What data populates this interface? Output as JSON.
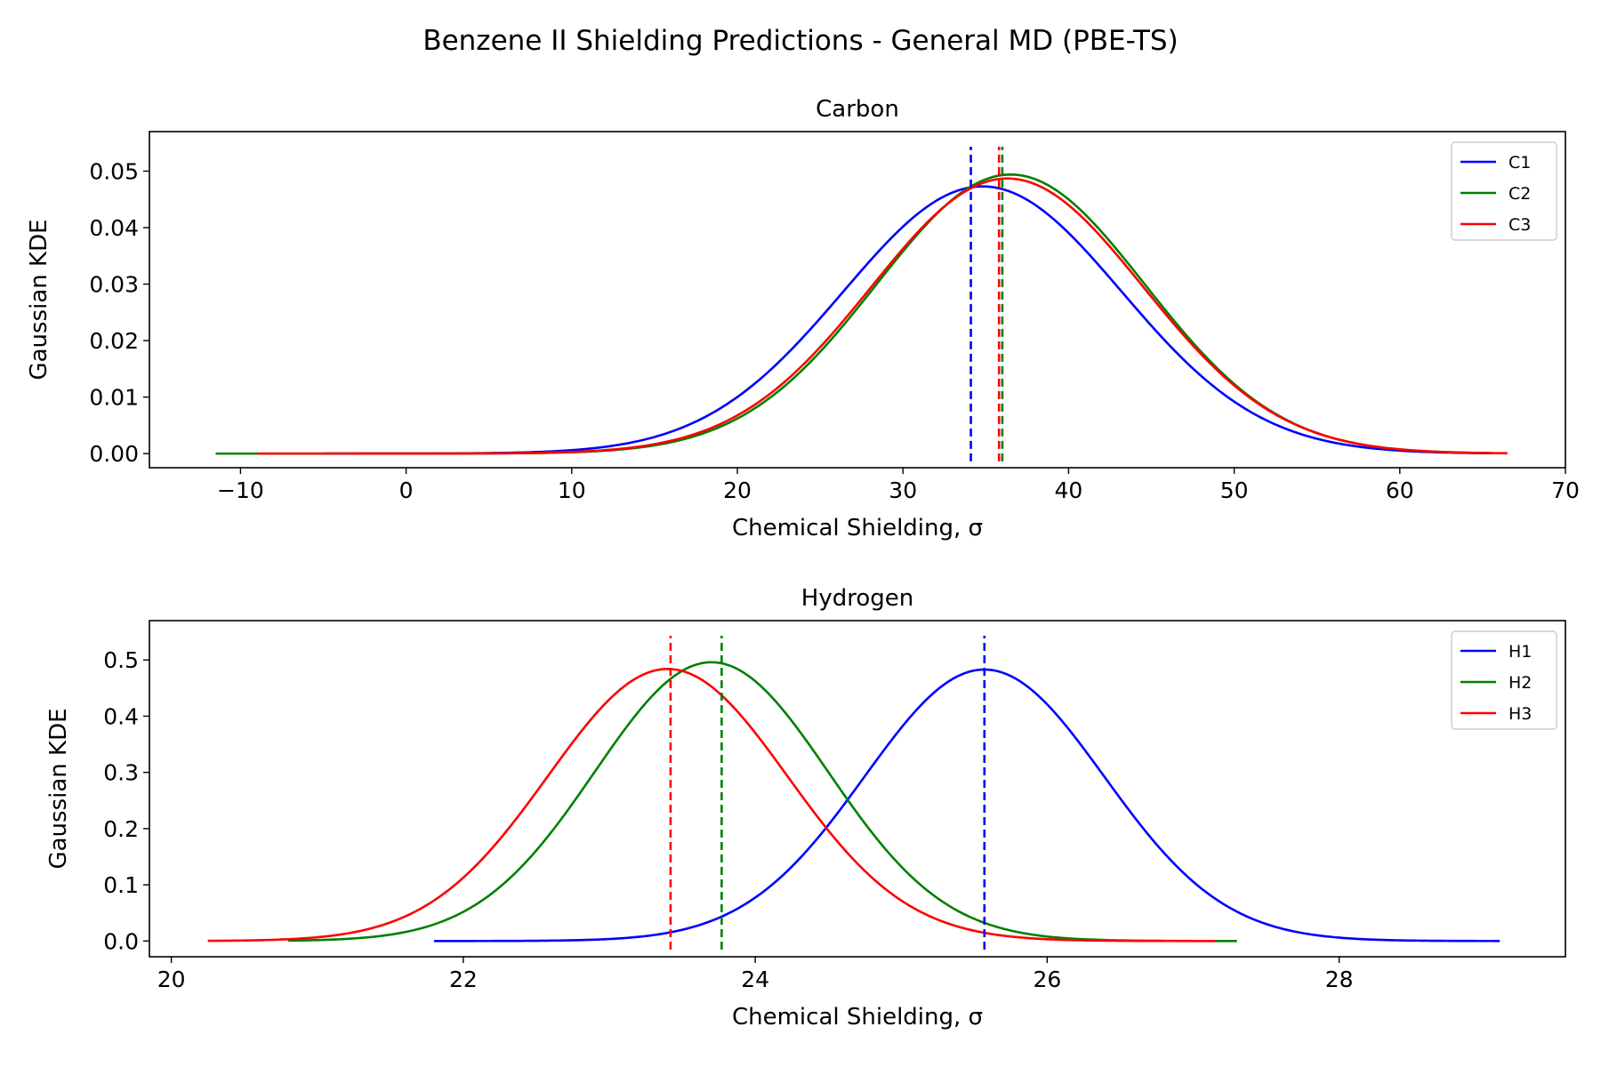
{
  "figure": {
    "suptitle": "Benzene II Shielding Predictions - General MD (PBE-TS)"
  },
  "chart_data": [
    {
      "type": "line",
      "title": "Carbon",
      "xlabel": "Chemical Shielding, σ",
      "ylabel": "Gaussian KDE",
      "xlim": [
        -15.5,
        70
      ],
      "ylim": [
        -0.0025,
        0.057
      ],
      "xticks": [
        -10,
        0,
        10,
        20,
        30,
        40,
        50,
        60,
        70
      ],
      "xtick_labels": [
        "−10",
        "0",
        "10",
        "20",
        "30",
        "40",
        "50",
        "60",
        "70"
      ],
      "yticks": [
        0.0,
        0.01,
        0.02,
        0.03,
        0.04,
        0.05
      ],
      "ytick_labels": [
        "0.00",
        "0.01",
        "0.02",
        "0.03",
        "0.04",
        "0.05"
      ],
      "legend_position": "upper right",
      "grid": false,
      "series": [
        {
          "name": "C1",
          "color": "#0000ff",
          "mean": 34.8,
          "sd": 8.4,
          "peak": 0.0473,
          "x_range": [
            -5,
            65.5
          ],
          "mean_line": 34.1
        },
        {
          "name": "C2",
          "color": "#008000",
          "mean": 36.5,
          "sd": 8.1,
          "peak": 0.0494,
          "x_range": [
            -11.5,
            65.5
          ],
          "mean_line": 36.0
        },
        {
          "name": "C3",
          "color": "#ff0000",
          "mean": 36.3,
          "sd": 8.2,
          "peak": 0.0487,
          "x_range": [
            -9,
            66.5
          ],
          "mean_line": 35.8
        }
      ]
    },
    {
      "type": "line",
      "title": "Hydrogen",
      "xlabel": "Chemical Shielding, σ",
      "ylabel": "Gaussian KDE",
      "xlim": [
        19.85,
        29.55
      ],
      "ylim": [
        -0.028,
        0.57
      ],
      "xticks": [
        20,
        22,
        24,
        26,
        28
      ],
      "xtick_labels": [
        "20",
        "22",
        "24",
        "26",
        "28"
      ],
      "yticks": [
        0.0,
        0.1,
        0.2,
        0.3,
        0.4,
        0.5
      ],
      "ytick_labels": [
        "0.0",
        "0.1",
        "0.2",
        "0.3",
        "0.4",
        "0.5"
      ],
      "legend_position": "upper right",
      "grid": false,
      "series": [
        {
          "name": "H1",
          "color": "#0000ff",
          "mean": 25.57,
          "sd": 0.82,
          "peak": 0.483,
          "x_range": [
            21.8,
            29.1
          ],
          "mean_line": 25.57
        },
        {
          "name": "H2",
          "color": "#008000",
          "mean": 23.7,
          "sd": 0.8,
          "peak": 0.496,
          "x_range": [
            20.8,
            27.3
          ],
          "mean_line": 23.77
        },
        {
          "name": "H3",
          "color": "#ff0000",
          "mean": 23.4,
          "sd": 0.82,
          "peak": 0.484,
          "x_range": [
            20.25,
            27.15
          ],
          "mean_line": 23.42
        }
      ]
    }
  ]
}
